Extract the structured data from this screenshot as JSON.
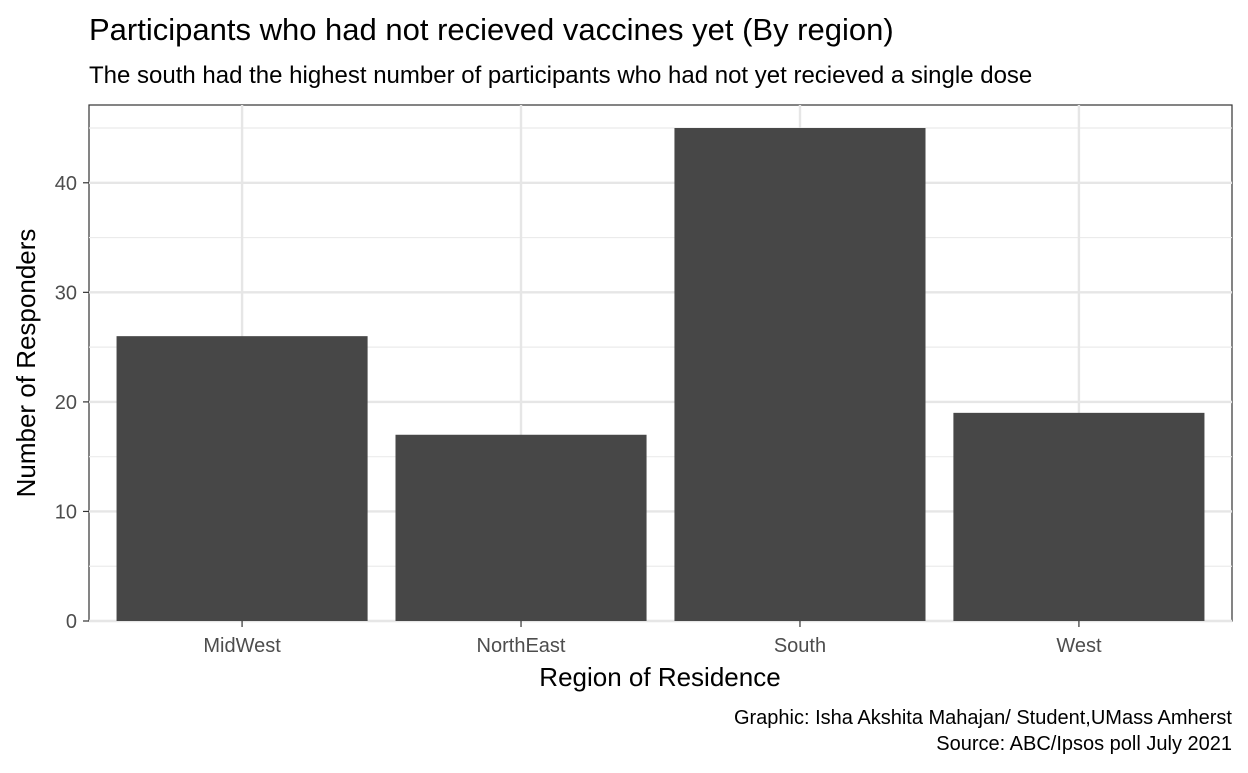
{
  "chart_data": {
    "type": "bar",
    "title": "Participants who had not recieved vaccines yet (By region)",
    "subtitle": "The south had the highest number of participants who had not yet recieved a single dose",
    "xlabel": "Region of Residence",
    "ylabel": "Number of Responders",
    "categories": [
      "MidWest",
      "NorthEast",
      "South",
      "West"
    ],
    "values": [
      26,
      17,
      45,
      19
    ],
    "ylim": [
      0,
      47.1
    ],
    "yticks": [
      0,
      10,
      20,
      30,
      40
    ],
    "grid": true,
    "bar_color": "#474747",
    "caption": [
      "Graphic: Isha Akshita Mahajan/ Student,UMass Amherst",
      "Source: ABC/Ipsos poll July 2021"
    ]
  }
}
